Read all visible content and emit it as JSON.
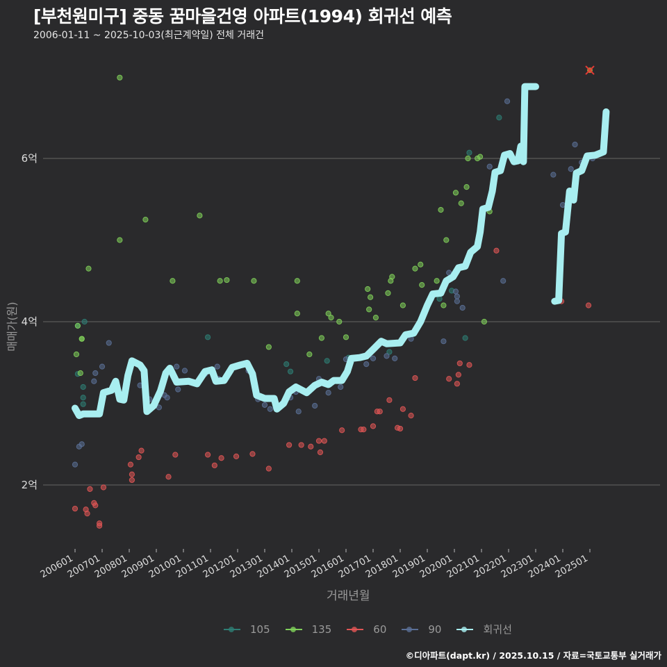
{
  "header": {
    "title": "[부천원미구] 중동 꿈마을건영 아파트(1994) 회귀선 예측",
    "subtitle": "2006-01-11 ~ 2025-10-03(최근계약일) 전체 거래건"
  },
  "footer": {
    "credit": "©디아파트(dapt.kr) / 2025.10.15 / 자료=국토교통부 실거래가"
  },
  "colors": {
    "background": "#2a2a2c",
    "grid": "#5a5a5a",
    "s105": "#2e7d74",
    "s135": "#7fcf5a",
    "s60": "#e05555",
    "s90": "#5a6f96",
    "regression": "#a8eef0"
  },
  "legend": [
    {
      "key": "105",
      "color": "#2e7d74"
    },
    {
      "key": "135",
      "color": "#7fcf5a"
    },
    {
      "key": "60",
      "color": "#e05555"
    },
    {
      "key": "90",
      "color": "#5a6f96"
    },
    {
      "key": "회귀선",
      "color": "#a8eef0"
    }
  ],
  "chart_data": {
    "type": "scatter",
    "title": "[부천원미구] 중동 꿈마을건영 아파트(1994) 회귀선 예측",
    "subtitle": "2006-01-11 ~ 2025-10-03(최근계약일) 전체 거래건",
    "xlabel": "거래년월",
    "ylabel": "매매가(원)",
    "x_ticks": [
      "200601",
      "200701",
      "200801",
      "200901",
      "201001",
      "201101",
      "201201",
      "201301",
      "201401",
      "201501",
      "201601",
      "201701",
      "201801",
      "201901",
      "202001",
      "202101",
      "202201",
      "202301",
      "202401",
      "202501"
    ],
    "y_ticks": [
      "2억",
      "4억",
      "6억"
    ],
    "y_tick_values": [
      2.0,
      4.0,
      6.0
    ],
    "ylim": [
      1.25,
      7.3
    ],
    "xlim": [
      2005.6,
      2026.0
    ],
    "unit": "억원",
    "grid": true,
    "legend_position": "bottom",
    "series": [
      {
        "name": "105",
        "color": "#2e7d74",
        "points": [
          [
            2006.1,
            3.95
          ],
          [
            2006.35,
            4.0
          ],
          [
            2006.3,
            3.07
          ],
          [
            2006.3,
            3.2
          ],
          [
            2006.3,
            2.99
          ],
          [
            2006.1,
            3.36
          ],
          [
            2010.9,
            3.81
          ],
          [
            2013.8,
            3.48
          ],
          [
            2013.95,
            3.39
          ],
          [
            2015.3,
            3.52
          ],
          [
            2016.1,
            3.56
          ],
          [
            2018.5,
            3.85
          ],
          [
            2019.45,
            4.28
          ],
          [
            2019.9,
            4.38
          ],
          [
            2020.4,
            3.8
          ],
          [
            2021.65,
            6.5
          ],
          [
            2020.55,
            6.07
          ],
          [
            2017.6,
            3.63
          ]
        ]
      },
      {
        "name": "135",
        "color": "#7fcf5a",
        "points": [
          [
            2006.05,
            3.6
          ],
          [
            2006.1,
            3.95
          ],
          [
            2006.25,
            3.79
          ],
          [
            2006.25,
            3.79
          ],
          [
            2006.2,
            3.37
          ],
          [
            2006.5,
            4.65
          ],
          [
            2007.65,
            6.99
          ],
          [
            2007.65,
            5.0
          ],
          [
            2008.6,
            5.25
          ],
          [
            2009.6,
            4.5
          ],
          [
            2010.6,
            5.3
          ],
          [
            2011.35,
            4.5
          ],
          [
            2011.6,
            4.51
          ],
          [
            2012.6,
            4.5
          ],
          [
            2013.15,
            3.69
          ],
          [
            2014.2,
            4.5
          ],
          [
            2014.2,
            4.1
          ],
          [
            2015.35,
            4.1
          ],
          [
            2015.45,
            4.05
          ],
          [
            2015.75,
            4.0
          ],
          [
            2015.1,
            3.8
          ],
          [
            2014.65,
            3.6
          ],
          [
            2016.0,
            3.81
          ],
          [
            2016.8,
            4.4
          ],
          [
            2016.85,
            4.15
          ],
          [
            2016.9,
            4.3
          ],
          [
            2017.1,
            4.05
          ],
          [
            2017.55,
            4.35
          ],
          [
            2017.65,
            4.5
          ],
          [
            2017.7,
            4.55
          ],
          [
            2018.1,
            4.2
          ],
          [
            2018.55,
            4.65
          ],
          [
            2018.75,
            4.7
          ],
          [
            2018.8,
            4.45
          ],
          [
            2019.35,
            4.5
          ],
          [
            2019.5,
            5.37
          ],
          [
            2019.7,
            5.0
          ],
          [
            2019.6,
            4.2
          ],
          [
            2020.05,
            5.58
          ],
          [
            2020.25,
            5.45
          ],
          [
            2020.45,
            5.65
          ],
          [
            2020.5,
            6.0
          ],
          [
            2020.85,
            6.0
          ],
          [
            2020.95,
            6.02
          ],
          [
            2021.1,
            4.0
          ],
          [
            2021.3,
            5.35
          ]
        ]
      },
      {
        "name": "60",
        "color": "#e05555",
        "points": [
          [
            2006.0,
            1.71
          ],
          [
            2006.4,
            1.7
          ],
          [
            2006.45,
            1.65
          ],
          [
            2006.55,
            1.95
          ],
          [
            2006.7,
            1.78
          ],
          [
            2006.75,
            1.75
          ],
          [
            2006.9,
            1.53
          ],
          [
            2006.9,
            1.5
          ],
          [
            2007.05,
            1.97
          ],
          [
            2008.05,
            2.25
          ],
          [
            2008.1,
            2.13
          ],
          [
            2008.1,
            2.06
          ],
          [
            2008.35,
            2.34
          ],
          [
            2008.45,
            2.42
          ],
          [
            2009.45,
            2.1
          ],
          [
            2009.7,
            2.37
          ],
          [
            2010.9,
            2.37
          ],
          [
            2011.15,
            2.24
          ],
          [
            2011.4,
            2.33
          ],
          [
            2011.95,
            2.35
          ],
          [
            2012.55,
            2.38
          ],
          [
            2013.15,
            2.2
          ],
          [
            2013.9,
            2.49
          ],
          [
            2014.35,
            2.49
          ],
          [
            2014.7,
            2.47
          ],
          [
            2015.0,
            2.54
          ],
          [
            2015.05,
            2.4
          ],
          [
            2015.2,
            2.54
          ],
          [
            2015.85,
            2.67
          ],
          [
            2016.55,
            2.68
          ],
          [
            2016.65,
            2.68
          ],
          [
            2017.0,
            2.72
          ],
          [
            2017.15,
            2.9
          ],
          [
            2017.25,
            2.9
          ],
          [
            2017.6,
            3.04
          ],
          [
            2017.9,
            2.7
          ],
          [
            2018.0,
            2.69
          ],
          [
            2018.1,
            2.93
          ],
          [
            2018.4,
            2.85
          ],
          [
            2018.55,
            3.31
          ],
          [
            2019.8,
            3.3
          ],
          [
            2020.1,
            3.24
          ],
          [
            2020.15,
            3.35
          ],
          [
            2020.2,
            3.49
          ],
          [
            2020.55,
            3.47
          ],
          [
            2021.55,
            4.87
          ],
          [
            2023.95,
            4.25
          ],
          [
            2024.95,
            4.2
          ]
        ]
      },
      {
        "name": "90",
        "color": "#5a6f96",
        "points": [
          [
            2006.0,
            2.25
          ],
          [
            2006.15,
            2.47
          ],
          [
            2006.25,
            2.5
          ],
          [
            2006.7,
            3.27
          ],
          [
            2006.75,
            3.37
          ],
          [
            2007.0,
            3.45
          ],
          [
            2007.25,
            3.74
          ],
          [
            2007.45,
            3.21
          ],
          [
            2008.4,
            3.22
          ],
          [
            2008.75,
            3.05
          ],
          [
            2009.1,
            2.95
          ],
          [
            2009.3,
            3.1
          ],
          [
            2009.4,
            3.07
          ],
          [
            2009.75,
            3.45
          ],
          [
            2009.8,
            3.17
          ],
          [
            2010.05,
            3.4
          ],
          [
            2010.8,
            3.36
          ],
          [
            2011.25,
            3.45
          ],
          [
            2011.3,
            3.3
          ],
          [
            2012.4,
            3.4
          ],
          [
            2012.75,
            3.05
          ],
          [
            2013.0,
            2.98
          ],
          [
            2013.1,
            3.05
          ],
          [
            2013.2,
            2.93
          ],
          [
            2013.65,
            3.0
          ],
          [
            2013.95,
            3.07
          ],
          [
            2014.15,
            3.14
          ],
          [
            2014.25,
            2.9
          ],
          [
            2014.85,
            2.97
          ],
          [
            2015.0,
            3.3
          ],
          [
            2015.35,
            3.13
          ],
          [
            2015.4,
            3.23
          ],
          [
            2015.8,
            3.2
          ],
          [
            2016.0,
            3.54
          ],
          [
            2016.75,
            3.48
          ],
          [
            2017.0,
            3.55
          ],
          [
            2017.5,
            3.58
          ],
          [
            2017.8,
            3.55
          ],
          [
            2018.2,
            3.82
          ],
          [
            2018.4,
            3.79
          ],
          [
            2019.15,
            4.28
          ],
          [
            2019.6,
            3.76
          ],
          [
            2019.8,
            4.6
          ],
          [
            2020.05,
            4.37
          ],
          [
            2020.1,
            4.31
          ],
          [
            2020.1,
            4.25
          ],
          [
            2020.3,
            4.17
          ],
          [
            2021.3,
            5.9
          ],
          [
            2021.8,
            4.5
          ],
          [
            2021.95,
            6.7
          ],
          [
            2022.8,
            6.88
          ],
          [
            2023.65,
            5.8
          ],
          [
            2024.0,
            5.43
          ],
          [
            2024.3,
            5.87
          ],
          [
            2024.45,
            6.17
          ],
          [
            2024.5,
            5.8
          ],
          [
            2024.7,
            5.95
          ],
          [
            2025.1,
            6.0
          ]
        ]
      },
      {
        "name": "회귀선",
        "color": "#a8eef0",
        "type": "line",
        "segments": [
          [
            [
              2006.0,
              2.94
            ],
            [
              2006.15,
              2.85
            ],
            [
              2006.3,
              2.87
            ],
            [
              2006.9,
              2.87
            ],
            [
              2007.05,
              3.13
            ],
            [
              2007.35,
              3.16
            ],
            [
              2007.5,
              3.27
            ],
            [
              2007.65,
              3.05
            ],
            [
              2007.8,
              3.04
            ],
            [
              2007.95,
              3.34
            ],
            [
              2008.1,
              3.52
            ],
            [
              2008.4,
              3.47
            ],
            [
              2008.55,
              3.4
            ],
            [
              2008.65,
              2.9
            ],
            [
              2008.9,
              2.97
            ],
            [
              2009.15,
              3.15
            ],
            [
              2009.35,
              3.37
            ],
            [
              2009.5,
              3.43
            ],
            [
              2009.75,
              3.26
            ],
            [
              2010.2,
              3.27
            ],
            [
              2010.5,
              3.24
            ],
            [
              2010.8,
              3.39
            ],
            [
              2011.05,
              3.41
            ],
            [
              2011.2,
              3.27
            ],
            [
              2011.5,
              3.28
            ],
            [
              2011.8,
              3.44
            ],
            [
              2012.1,
              3.47
            ],
            [
              2012.35,
              3.49
            ],
            [
              2012.55,
              3.36
            ],
            [
              2012.7,
              3.1
            ],
            [
              2013.0,
              3.06
            ],
            [
              2013.35,
              3.06
            ],
            [
              2013.45,
              2.93
            ],
            [
              2013.7,
              3.0
            ],
            [
              2013.9,
              3.14
            ],
            [
              2014.15,
              3.2
            ],
            [
              2014.55,
              3.13
            ],
            [
              2014.85,
              3.22
            ],
            [
              2015.1,
              3.26
            ],
            [
              2015.35,
              3.23
            ],
            [
              2015.55,
              3.28
            ],
            [
              2015.85,
              3.28
            ],
            [
              2016.05,
              3.39
            ],
            [
              2016.2,
              3.55
            ],
            [
              2016.5,
              3.56
            ],
            [
              2016.75,
              3.58
            ],
            [
              2017.0,
              3.66
            ],
            [
              2017.3,
              3.76
            ],
            [
              2017.5,
              3.73
            ],
            [
              2018.0,
              3.74
            ],
            [
              2018.2,
              3.84
            ],
            [
              2018.5,
              3.86
            ],
            [
              2018.75,
              4.0
            ],
            [
              2019.0,
              4.2
            ],
            [
              2019.2,
              4.34
            ],
            [
              2019.5,
              4.35
            ],
            [
              2019.7,
              4.5
            ],
            [
              2019.95,
              4.55
            ],
            [
              2020.15,
              4.66
            ],
            [
              2020.4,
              4.68
            ],
            [
              2020.6,
              4.85
            ],
            [
              2020.85,
              4.92
            ],
            [
              2020.95,
              5.1
            ],
            [
              2021.05,
              5.38
            ],
            [
              2021.25,
              5.4
            ],
            [
              2021.4,
              5.6
            ],
            [
              2021.5,
              5.83
            ],
            [
              2021.7,
              5.85
            ],
            [
              2021.85,
              6.04
            ],
            [
              2022.05,
              6.06
            ],
            [
              2022.2,
              5.96
            ],
            [
              2022.35,
              5.97
            ],
            [
              2022.45,
              6.15
            ],
            [
              2022.55,
              5.96
            ],
            [
              2022.6,
              6.88
            ],
            [
              2023.0,
              6.88
            ]
          ],
          [
            [
              2023.7,
              4.25
            ],
            [
              2023.85,
              4.26
            ],
            [
              2023.95,
              5.08
            ],
            [
              2024.1,
              5.1
            ],
            [
              2024.25,
              5.6
            ],
            [
              2024.4,
              5.49
            ],
            [
              2024.5,
              5.82
            ],
            [
              2024.7,
              5.85
            ],
            [
              2024.9,
              6.03
            ],
            [
              2025.2,
              6.04
            ],
            [
              2025.5,
              6.08
            ],
            [
              2025.6,
              6.57
            ]
          ]
        ]
      }
    ],
    "annotations": [
      {
        "type": "x-marker",
        "x": 2025.0,
        "y": 7.08,
        "color": "#e53935"
      }
    ]
  },
  "axes": {
    "xlabel": "거래년월",
    "ylabel": "매매가(원)"
  }
}
